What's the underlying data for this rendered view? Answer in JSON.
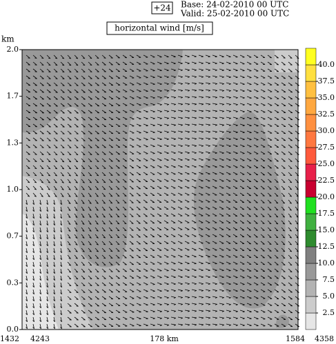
{
  "chart_data": {
    "type": "contour",
    "title": "horizontal wind [m/s]",
    "run_label": "+24",
    "base": "Base: 24-02-2010  00 UTC",
    "valid": "Valid: 25-02-2010  00 UTC",
    "y_label": "km",
    "ylim": [
      0,
      2
    ],
    "yticks": [
      {
        "value": 0,
        "label": "0.0"
      },
      {
        "value": 0.333,
        "label": "0.3"
      },
      {
        "value": 0.667,
        "label": "0.7"
      },
      {
        "value": 1,
        "label": "1.0"
      },
      {
        "value": 1.333,
        "label": "1.3"
      },
      {
        "value": 1.667,
        "label": "1.7"
      },
      {
        "value": 2,
        "label": "2.0"
      }
    ],
    "x_labels": [
      "1432",
      "4243",
      "178 km",
      "1584",
      "4358"
    ],
    "colorbar": {
      "lim": [
        0,
        42.5
      ],
      "ticks": [
        2.5,
        {
          "value": 5,
          "label": "5.0"
        },
        7.5,
        {
          "value": 10,
          "label": "10.0"
        },
        12.5,
        {
          "value": 15,
          "label": "15.0"
        },
        17.5,
        {
          "value": 20,
          "label": "20.0"
        },
        22.5,
        {
          "value": 25,
          "label": "25.0"
        },
        27.5,
        {
          "value": 30,
          "label": "30.0"
        },
        32.5,
        {
          "value": 35,
          "label": "35.0"
        },
        37.5,
        {
          "value": 40,
          "label": "40.0"
        }
      ],
      "colors": [
        "#e6e6e6",
        "#cccccc",
        "#b3b3b3",
        "#999999",
        "#808080",
        "#2e8b2e",
        "#40b040",
        "#20e020",
        "#c80030",
        "#e8204a",
        "#ff5a3c",
        "#ff7840",
        "#ff9040",
        "#ffa840",
        "#ffc040",
        "#ffe040",
        "#ffff20"
      ]
    }
  }
}
